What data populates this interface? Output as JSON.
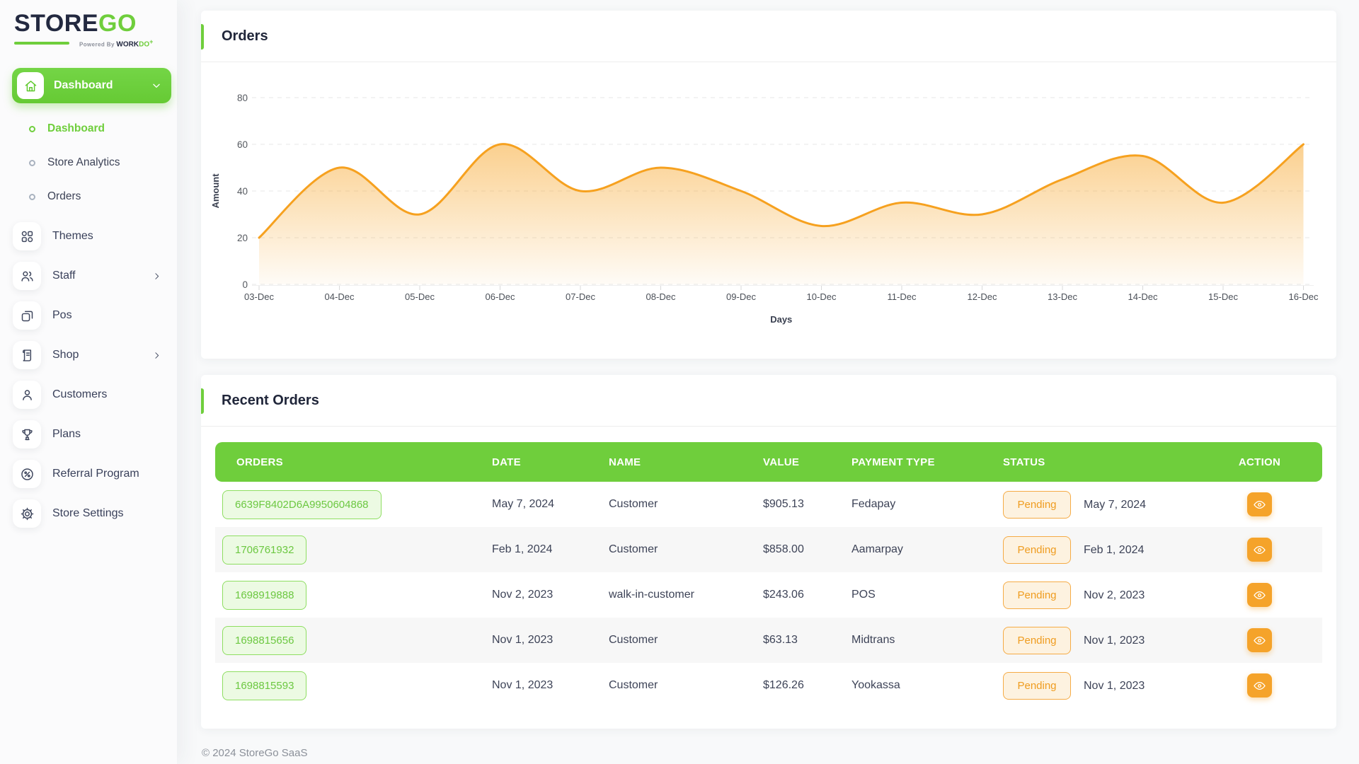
{
  "colors": {
    "primary_green": "#6fce3c",
    "orange_line": "#f6a11f",
    "navy_text": "#232940",
    "alt_row": "#f7f7f7"
  },
  "sidebar": {
    "logo": {
      "part1": "STORE",
      "part2": "GO",
      "tagline_prefix": "Powered By",
      "tagline_brand1": "WORK",
      "tagline_brand2": "DO",
      "tagline_plus": "+"
    },
    "group": {
      "label": "Dashboard"
    },
    "submenu": [
      {
        "label": "Dashboard",
        "active": true
      },
      {
        "label": "Store Analytics",
        "active": false
      },
      {
        "label": "Orders",
        "active": false
      }
    ],
    "items": [
      {
        "label": "Themes",
        "icon": "grid-icon",
        "chevron": false
      },
      {
        "label": "Staff",
        "icon": "users-icon",
        "chevron": true
      },
      {
        "label": "Pos",
        "icon": "pos-icon",
        "chevron": false
      },
      {
        "label": "Shop",
        "icon": "receipt-icon",
        "chevron": true
      },
      {
        "label": "Customers",
        "icon": "user-icon",
        "chevron": false
      },
      {
        "label": "Plans",
        "icon": "trophy-icon",
        "chevron": false
      },
      {
        "label": "Referral Program",
        "icon": "discount-badge-icon",
        "chevron": false
      },
      {
        "label": "Store Settings",
        "icon": "gear-icon",
        "chevron": false
      }
    ]
  },
  "orders_card": {
    "title": "Orders"
  },
  "chart_data": {
    "type": "area",
    "categories": [
      "03-Dec",
      "04-Dec",
      "05-Dec",
      "06-Dec",
      "07-Dec",
      "08-Dec",
      "09-Dec",
      "10-Dec",
      "11-Dec",
      "12-Dec",
      "13-Dec",
      "14-Dec",
      "15-Dec",
      "16-Dec"
    ],
    "values": [
      20,
      50,
      30,
      60,
      40,
      50,
      40,
      25,
      35,
      30,
      45,
      55,
      35,
      60
    ],
    "title": "Orders",
    "xlabel": "Days",
    "ylabel": "Amount",
    "ylim": [
      0,
      80
    ],
    "yticks": [
      0,
      20,
      40,
      60,
      80
    ],
    "grid": "dashed-horizontal",
    "legend": "none",
    "line_color": "#f6a11f",
    "fill_gradient_top": "rgba(246,161,31,0.5)",
    "fill_gradient_bottom": "rgba(246,161,31,0.04)"
  },
  "recent_orders": {
    "title": "Recent Orders",
    "columns": [
      "ORDERS",
      "DATE",
      "NAME",
      "VALUE",
      "PAYMENT TYPE",
      "STATUS",
      "ACTION"
    ],
    "rows": [
      {
        "order_id": "6639F8402D6A9950604868",
        "date": "May 7, 2024",
        "name": "Customer",
        "value": "$905.13",
        "payment_type": "Fedapay",
        "status": "Pending",
        "status_date": "May 7, 2024"
      },
      {
        "order_id": "1706761932",
        "date": "Feb 1, 2024",
        "name": "Customer",
        "value": "$858.00",
        "payment_type": "Aamarpay",
        "status": "Pending",
        "status_date": "Feb 1, 2024"
      },
      {
        "order_id": "1698919888",
        "date": "Nov 2, 2023",
        "name": "walk-in-customer",
        "value": "$243.06",
        "payment_type": "POS",
        "status": "Pending",
        "status_date": "Nov 2, 2023"
      },
      {
        "order_id": "1698815656",
        "date": "Nov 1, 2023",
        "name": "Customer",
        "value": "$63.13",
        "payment_type": "Midtrans",
        "status": "Pending",
        "status_date": "Nov 1, 2023"
      },
      {
        "order_id": "1698815593",
        "date": "Nov 1, 2023",
        "name": "Customer",
        "value": "$126.26",
        "payment_type": "Yookassa",
        "status": "Pending",
        "status_date": "Nov 1, 2023"
      }
    ]
  },
  "footer": {
    "copyright": "© 2024 StoreGo SaaS"
  }
}
